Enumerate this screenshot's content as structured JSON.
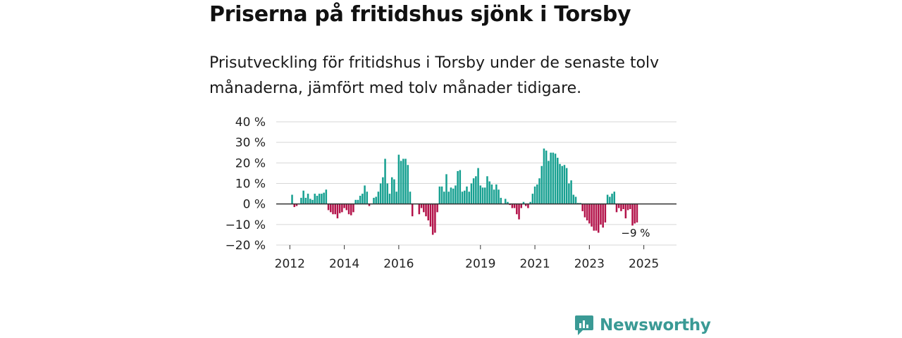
{
  "header": {
    "title": "Priserna på fritidshus sjönk i Torsby",
    "subtitle": "Prisutveckling för fritidshus i Torsby under de senaste tolv månaderna, jämfört med tolv månader tidigare."
  },
  "brand": {
    "name": "Newsworthy",
    "icon": "newsworthy-logo-icon",
    "color": "#3a9a95"
  },
  "colors": {
    "positive": "#17a091",
    "negative": "#b3134a",
    "grid": "#d7d7d7",
    "zero": "#333333"
  },
  "chart_data": {
    "type": "bar",
    "title": "Priserna på fritidshus sjönk i Torsby",
    "xlabel": "",
    "ylabel": "",
    "ylim": [
      -20,
      40
    ],
    "yticks": [
      40,
      30,
      20,
      10,
      0,
      -10,
      -20
    ],
    "ytick_labels": [
      "40 %",
      "30 %",
      "20 %",
      "10 %",
      "0 %",
      "−10 %",
      "−20 %"
    ],
    "xlim": [
      2011.5,
      2026.2
    ],
    "xticks": [
      2012,
      2014,
      2016,
      2019,
      2021,
      2023,
      2025
    ],
    "xtick_labels": [
      "2012",
      "2014",
      "2016",
      "2019",
      "2021",
      "2023",
      "2025"
    ],
    "grid": true,
    "x_start": 2011.75,
    "x_step_months": 1,
    "values": [
      0,
      0,
      0,
      0,
      4.5,
      -1.5,
      -1,
      0,
      3,
      6.5,
      3,
      5,
      2.5,
      2,
      5,
      4,
      5,
      5,
      5.5,
      7,
      -3,
      -4,
      -5,
      -5,
      -7,
      -4.5,
      -4,
      -2,
      -3,
      -5,
      -5.5,
      -4,
      2,
      2,
      4,
      5,
      9,
      6,
      -1,
      0,
      3,
      3.5,
      6,
      10,
      13,
      22,
      10,
      5,
      13,
      12,
      6,
      24,
      21,
      22,
      22,
      19,
      6,
      -6,
      0,
      0,
      -5,
      -2,
      -4,
      -6,
      -8,
      -11,
      -15,
      -14,
      -4,
      8.5,
      8.5,
      6,
      14.5,
      6,
      8,
      7.5,
      9,
      16,
      16.5,
      6,
      6.5,
      8.5,
      6,
      10,
      12.5,
      13.5,
      17.5,
      9,
      8,
      8,
      13.5,
      11,
      9.5,
      7,
      9.5,
      7,
      3,
      0,
      2.5,
      1,
      -0.5,
      -2,
      -2,
      -5,
      -7.5,
      -2,
      1,
      -1,
      -2,
      1,
      5,
      8.5,
      9.5,
      12.5,
      18.5,
      27,
      26,
      21,
      25,
      25,
      24.5,
      22.5,
      19.5,
      18.5,
      19,
      17.5,
      10,
      11.5,
      4.5,
      3.5,
      0.5,
      0.5,
      -3.5,
      -6.5,
      -8,
      -9.5,
      -11,
      -13,
      -13,
      -14,
      -10,
      -11.5,
      -9,
      4.5,
      3.5,
      5,
      6,
      -4,
      -2,
      -3.5,
      -2.5,
      -7,
      -3,
      -2.5,
      -10.5,
      -9.5,
      -9
    ],
    "annotations": [
      {
        "text": "−9 %",
        "at": "last-bar"
      }
    ]
  }
}
